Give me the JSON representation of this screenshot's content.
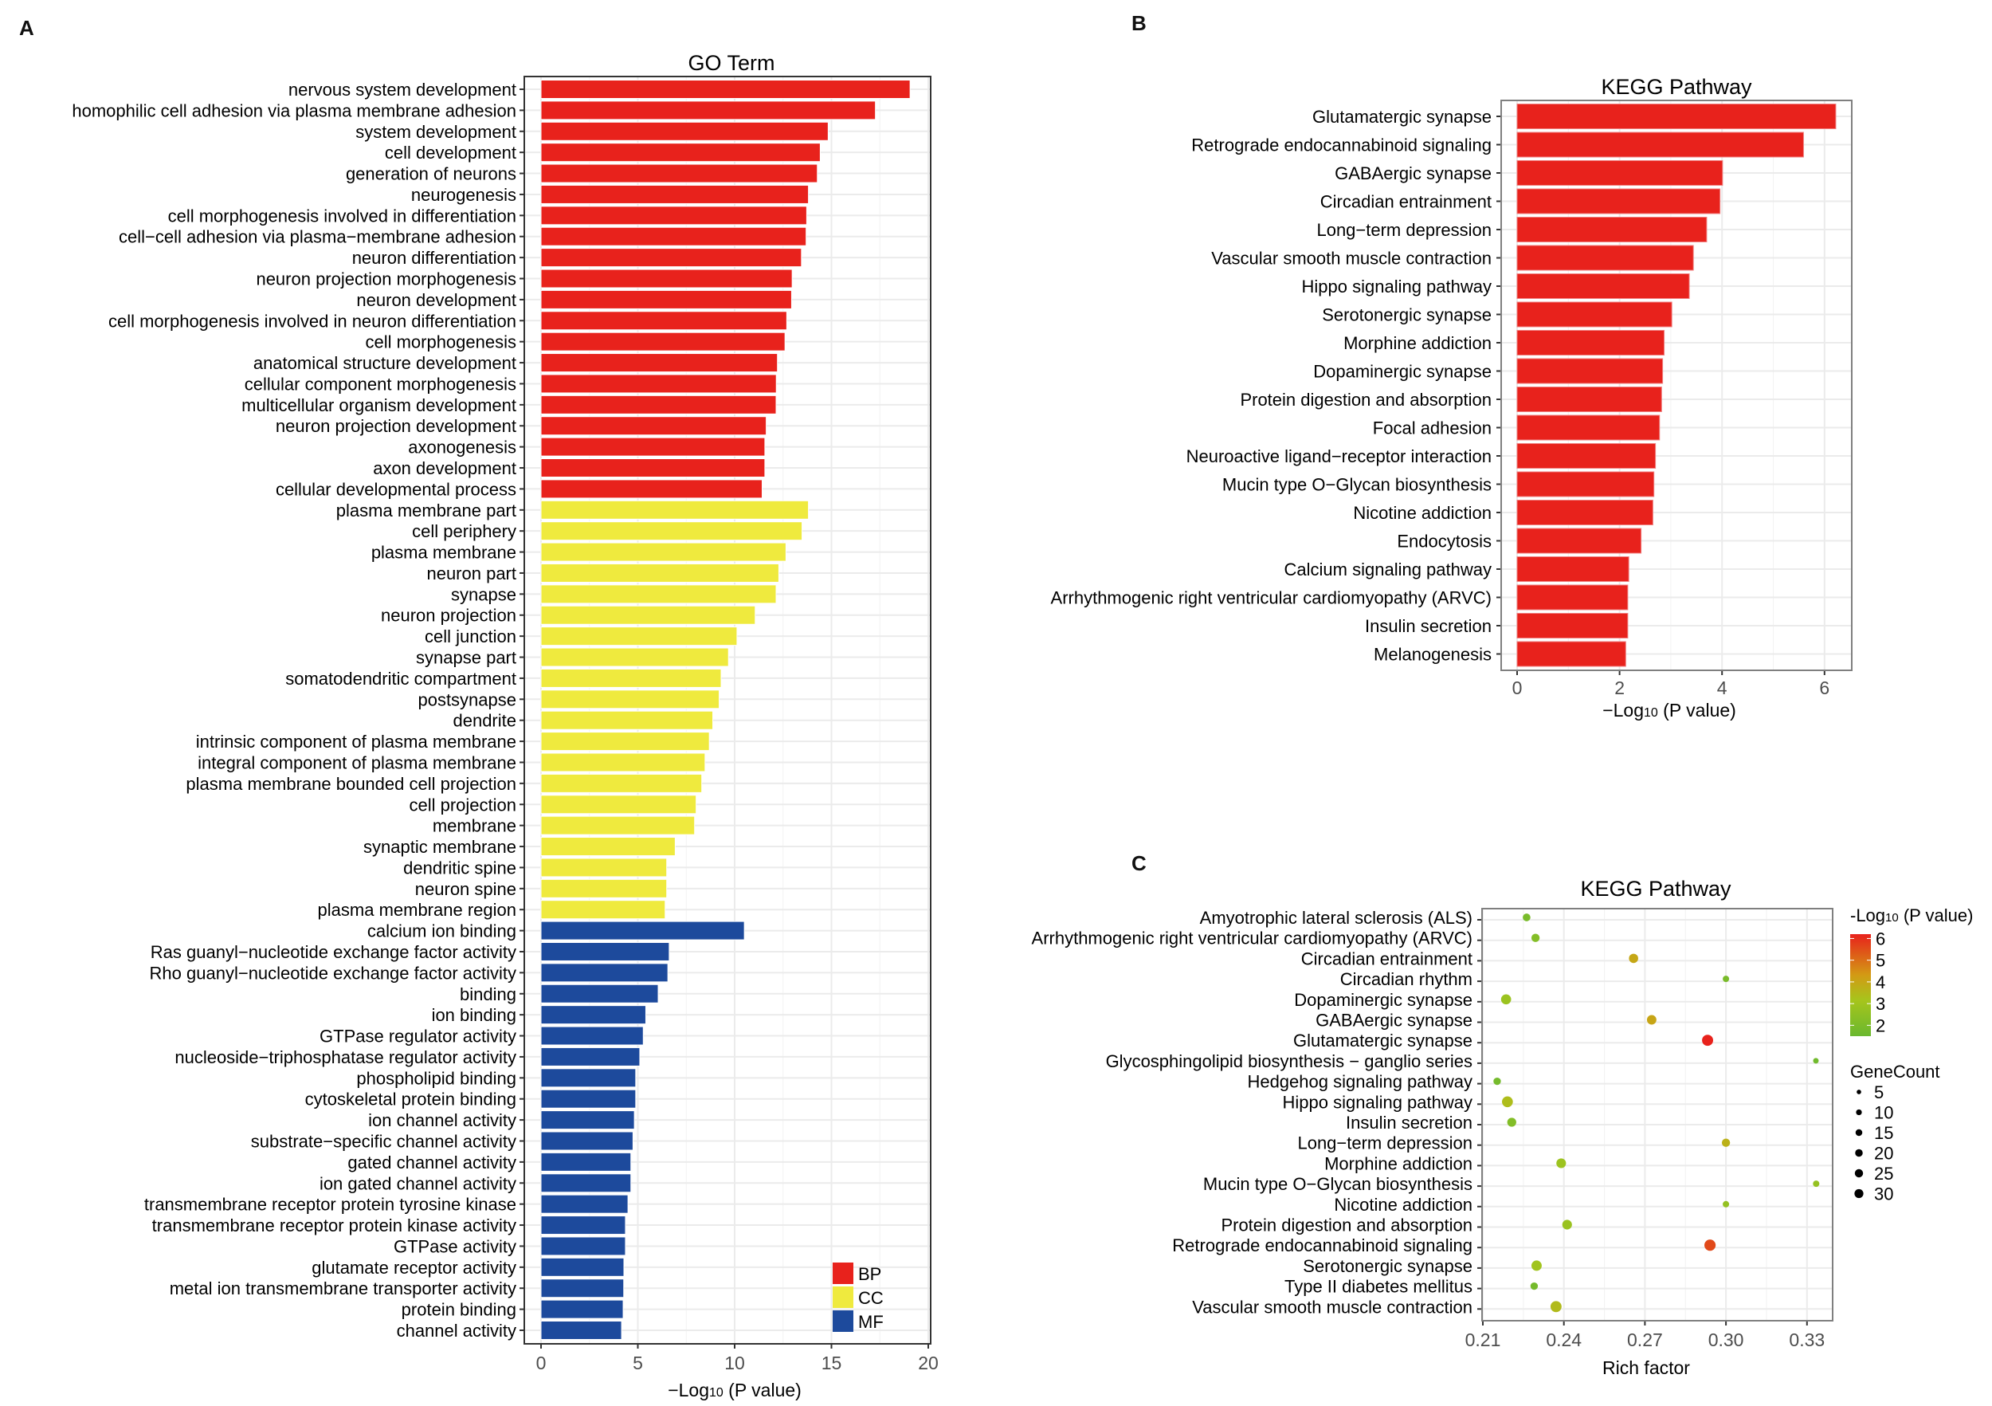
{
  "figure": {
    "panels": [
      "A",
      "B",
      "C"
    ]
  },
  "chart_data": [
    {
      "panel": "A",
      "type": "bar",
      "orientation": "horizontal",
      "title": "GO Term",
      "xlabel": "−Log10 (P value)",
      "xlabel_main": "−Log",
      "xlabel_sub": "10",
      "xlabel_tail": " (P value)",
      "ylabel": "",
      "xlim": [
        -0.9,
        20.1
      ],
      "xticks": [
        0,
        5,
        10,
        15,
        20
      ],
      "grid": true,
      "legend": {
        "placement": "bottom-right",
        "entries": [
          {
            "name": "BP",
            "color": "#e8221c"
          },
          {
            "name": "CC",
            "color": "#efea3e"
          },
          {
            "name": "MF",
            "color": "#1d4a9c"
          }
        ]
      },
      "categories": [
        "nervous system development",
        "homophilic cell adhesion via plasma membrane adhesion",
        "system development",
        "cell development",
        "generation of neurons",
        "neurogenesis",
        "cell morphogenesis involved in differentiation",
        "cell−cell adhesion via plasma−membrane adhesion",
        "neuron differentiation",
        "neuron projection morphogenesis",
        "neuron development",
        "cell morphogenesis involved in neuron differentiation",
        "cell morphogenesis",
        "anatomical structure development",
        "cellular component morphogenesis",
        "multicellular organism development",
        "neuron projection development",
        "axonogenesis",
        "axon development",
        "cellular developmental process",
        "plasma membrane part",
        "cell periphery",
        "plasma membrane",
        "neuron part",
        "synapse",
        "neuron projection",
        "cell junction",
        "synapse part",
        "somatodendritic compartment",
        "postsynapse",
        "dendrite",
        "intrinsic component of plasma membrane",
        "integral component of plasma membrane",
        "plasma membrane bounded cell projection",
        "cell projection",
        "membrane",
        "synaptic membrane",
        "dendritic spine",
        "neuron spine",
        "plasma membrane region",
        "calcium ion binding",
        "Ras guanyl−nucleotide exchange factor activity",
        "Rho guanyl−nucleotide exchange factor activity",
        "binding",
        "ion binding",
        "GTPase regulator activity",
        "nucleoside−triphosphatase regulator activity",
        "phospholipid binding",
        "cytoskeletal protein binding",
        "ion channel activity",
        "substrate−specific channel activity",
        "gated channel activity",
        "ion gated channel activity",
        "transmembrane receptor protein tyrosine kinase",
        "transmembrane receptor protein kinase activity",
        "GTPase activity",
        "glutamate receptor activity",
        "metal ion transmembrane transporter activity",
        "protein binding",
        "channel activity"
      ],
      "values": [
        19.06,
        17.27,
        14.83,
        14.42,
        14.27,
        13.81,
        13.72,
        13.69,
        13.45,
        12.97,
        12.94,
        12.69,
        12.6,
        12.21,
        12.15,
        12.14,
        11.63,
        11.56,
        11.56,
        11.42,
        13.81,
        13.48,
        12.65,
        12.28,
        12.14,
        11.06,
        10.12,
        9.68,
        9.3,
        9.2,
        8.87,
        8.69,
        8.47,
        8.3,
        8.01,
        7.93,
        6.93,
        6.49,
        6.49,
        6.41,
        10.5,
        6.62,
        6.55,
        6.05,
        5.41,
        5.28,
        5.1,
        4.89,
        4.89,
        4.82,
        4.75,
        4.64,
        4.64,
        4.49,
        4.36,
        4.36,
        4.28,
        4.27,
        4.24,
        4.16
      ],
      "groups": [
        "BP",
        "BP",
        "BP",
        "BP",
        "BP",
        "BP",
        "BP",
        "BP",
        "BP",
        "BP",
        "BP",
        "BP",
        "BP",
        "BP",
        "BP",
        "BP",
        "BP",
        "BP",
        "BP",
        "BP",
        "CC",
        "CC",
        "CC",
        "CC",
        "CC",
        "CC",
        "CC",
        "CC",
        "CC",
        "CC",
        "CC",
        "CC",
        "CC",
        "CC",
        "CC",
        "CC",
        "CC",
        "CC",
        "CC",
        "CC",
        "MF",
        "MF",
        "MF",
        "MF",
        "MF",
        "MF",
        "MF",
        "MF",
        "MF",
        "MF",
        "MF",
        "MF",
        "MF",
        "MF",
        "MF",
        "MF",
        "MF",
        "MF",
        "MF",
        "MF"
      ]
    },
    {
      "panel": "B",
      "type": "bar",
      "orientation": "horizontal",
      "title": "KEGG Pathway",
      "xlabel": "−Log10 (P value)",
      "xlabel_main": "−Log",
      "xlabel_sub": "10",
      "xlabel_tail": " (P value)",
      "ylabel": "",
      "xlim": [
        -0.31,
        6.53
      ],
      "xticks": [
        0,
        2,
        4,
        6
      ],
      "grid": true,
      "bar_color": "#e8221c",
      "categories": [
        "Glutamatergic synapse",
        "Retrograde endocannabinoid signaling",
        "GABAergic synapse",
        "Circadian entrainment",
        "Long−term depression",
        "Vascular smooth muscle contraction",
        "Hippo signaling pathway",
        "Serotonergic synapse",
        "Morphine addiction",
        "Dopaminergic synapse",
        "Protein digestion and absorption",
        "Focal adhesion",
        "Neuroactive ligand−receptor interaction",
        "Mucin type O−Glycan biosynthesis",
        "Nicotine addiction",
        "Endocytosis",
        "Calcium signaling pathway",
        "Arrhythmogenic right ventricular cardiomyopathy (ARVC)",
        "Insulin secretion",
        "Melanogenesis"
      ],
      "values": [
        6.22,
        5.59,
        4.01,
        3.96,
        3.7,
        3.44,
        3.36,
        3.02,
        2.87,
        2.84,
        2.82,
        2.78,
        2.7,
        2.67,
        2.65,
        2.42,
        2.18,
        2.16,
        2.16,
        2.12
      ]
    },
    {
      "panel": "C",
      "type": "scatter",
      "title": "KEGG Pathway",
      "xlabel": "Rich factor",
      "ylabel": "",
      "xlim": [
        0.2088,
        0.3392
      ],
      "xticks": [
        0.21,
        0.24,
        0.27,
        0.3,
        0.33
      ],
      "xtick_labels": [
        "0.21",
        "0.24",
        "0.27",
        "0.30",
        "0.33"
      ],
      "grid": true,
      "color_legend": {
        "title_main": "-Log",
        "title_sub": "10",
        "title_tail": " (P value)",
        "range": [
          1.5,
          6.2
        ],
        "ticks": [
          6,
          5,
          4,
          3,
          2
        ],
        "low_color": "#6ab82f",
        "mid_color": "#a6c51c",
        "high_color": "#e8221c",
        "placement": "right"
      },
      "size_legend": {
        "title": "GeneCount",
        "entries": [
          5,
          10,
          15,
          20,
          25,
          30
        ],
        "placement": "right"
      },
      "categories": [
        "Amyotrophic lateral sclerosis (ALS)",
        "Arrhythmogenic right ventricular cardiomyopathy (ARVC)",
        "Circadian entrainment",
        "Circadian rhythm",
        "Dopaminergic synapse",
        "GABAergic synapse",
        "Glutamatergic synapse",
        "Glycosphingolipid biosynthesis − ganglio series",
        "Hedgehog signaling pathway",
        "Hippo signaling pathway",
        "Insulin secretion",
        "Long−term depression",
        "Morphine addiction",
        "Mucin type O−Glycan biosynthesis",
        "Nicotine addiction",
        "Protein digestion and absorption",
        "Retrograde endocannabinoid signaling",
        "Serotonergic synapse",
        "Type II diabetes mellitus",
        "Vascular smooth muscle contraction"
      ],
      "points": [
        {
          "rich_factor": 0.2262,
          "neg_log10_p": 1.9,
          "gene_count": 10
        },
        {
          "rich_factor": 0.2295,
          "neg_log10_p": 2.2,
          "gene_count": 12
        },
        {
          "rich_factor": 0.2658,
          "neg_log10_p": 3.96,
          "gene_count": 16
        },
        {
          "rich_factor": 0.3,
          "neg_log10_p": 1.9,
          "gene_count": 6
        },
        {
          "rich_factor": 0.2186,
          "neg_log10_p": 2.84,
          "gene_count": 20
        },
        {
          "rich_factor": 0.2725,
          "neg_log10_p": 4.01,
          "gene_count": 17
        },
        {
          "rich_factor": 0.2932,
          "neg_log10_p": 6.22,
          "gene_count": 25
        },
        {
          "rich_factor": 0.3333,
          "neg_log10_p": 1.7,
          "gene_count": 4
        },
        {
          "rich_factor": 0.2153,
          "neg_log10_p": 1.8,
          "gene_count": 9
        },
        {
          "rich_factor": 0.2191,
          "neg_log10_p": 3.36,
          "gene_count": 24
        },
        {
          "rich_factor": 0.2207,
          "neg_log10_p": 2.16,
          "gene_count": 15
        },
        {
          "rich_factor": 0.3,
          "neg_log10_p": 3.7,
          "gene_count": 12
        },
        {
          "rich_factor": 0.239,
          "neg_log10_p": 2.87,
          "gene_count": 18
        },
        {
          "rich_factor": 0.3334,
          "neg_log10_p": 2.67,
          "gene_count": 6
        },
        {
          "rich_factor": 0.3,
          "neg_log10_p": 2.65,
          "gene_count": 6
        },
        {
          "rich_factor": 0.2412,
          "neg_log10_p": 2.82,
          "gene_count": 18
        },
        {
          "rich_factor": 0.2941,
          "neg_log10_p": 5.59,
          "gene_count": 26
        },
        {
          "rich_factor": 0.2299,
          "neg_log10_p": 3.02,
          "gene_count": 21
        },
        {
          "rich_factor": 0.229,
          "neg_log10_p": 1.8,
          "gene_count": 9
        },
        {
          "rich_factor": 0.2371,
          "neg_log10_p": 3.44,
          "gene_count": 25
        }
      ]
    }
  ]
}
